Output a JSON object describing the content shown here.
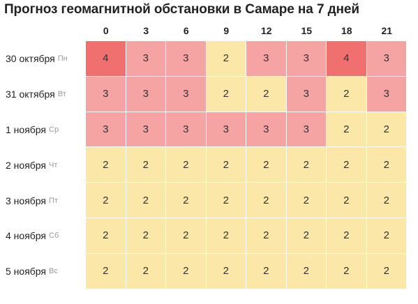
{
  "title": "Прогноз геомагнитной обстановки в Самаре на 7 дней",
  "hours": [
    "0",
    "3",
    "6",
    "9",
    "12",
    "15",
    "18",
    "21"
  ],
  "days": [
    {
      "date": "30 октября",
      "dow": "Пн",
      "values": [
        4,
        3,
        3,
        2,
        3,
        3,
        4,
        3
      ]
    },
    {
      "date": "31 октября",
      "dow": "Вт",
      "values": [
        3,
        3,
        3,
        2,
        2,
        3,
        2,
        3
      ]
    },
    {
      "date": "1 ноября",
      "dow": "Ср",
      "values": [
        3,
        3,
        3,
        3,
        3,
        3,
        2,
        2
      ]
    },
    {
      "date": "2 ноября",
      "dow": "Чт",
      "values": [
        2,
        2,
        2,
        2,
        2,
        2,
        2,
        2
      ]
    },
    {
      "date": "3 ноября",
      "dow": "Пт",
      "values": [
        2,
        2,
        2,
        2,
        2,
        2,
        2,
        2
      ]
    },
    {
      "date": "4 ноября",
      "dow": "Сб",
      "values": [
        2,
        2,
        2,
        2,
        2,
        2,
        2,
        2
      ]
    },
    {
      "date": "5 ноября",
      "dow": "Вс",
      "values": [
        2,
        2,
        2,
        2,
        2,
        2,
        2,
        2
      ]
    }
  ],
  "colors": {
    "level2": "#fbe7a7",
    "level3": "#f5a3a3",
    "level4": "#f07070"
  }
}
